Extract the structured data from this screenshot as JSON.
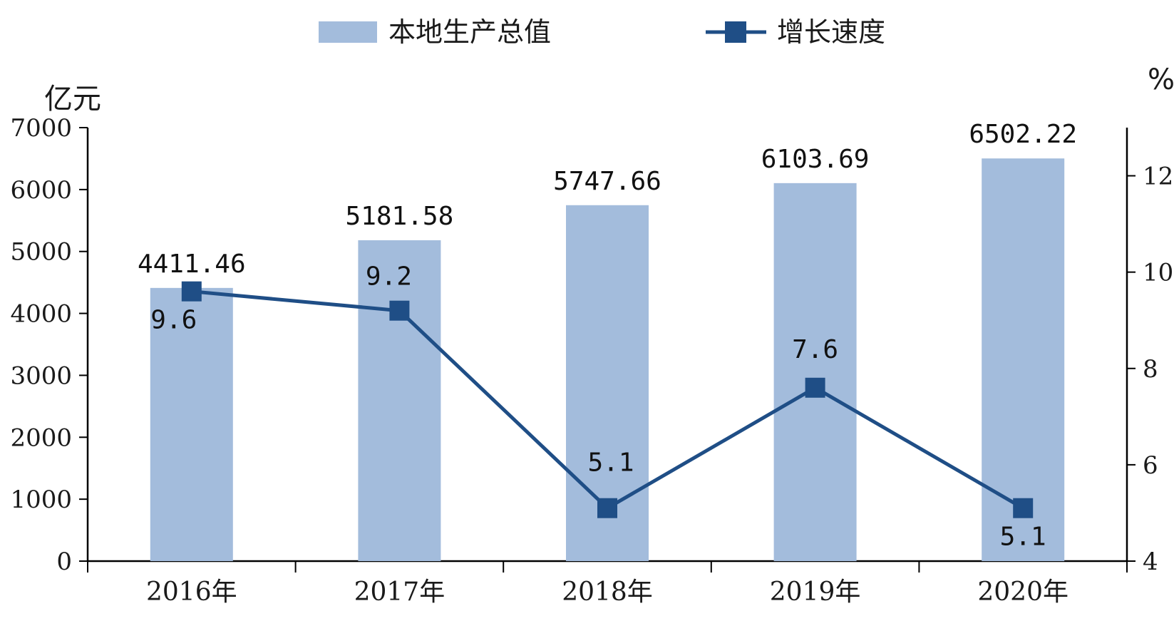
{
  "colors": {
    "bar": "#a3bcdc",
    "line": "#1f4e86",
    "axis": "#000000"
  },
  "chart_data": {
    "type": "bar",
    "categories": [
      "2016年",
      "2017年",
      "2018年",
      "2019年",
      "2020年"
    ],
    "series": [
      {
        "name": "本地生产总值",
        "type": "bar",
        "axis": "left",
        "values": [
          4411.46,
          5181.58,
          5747.66,
          6103.69,
          6502.22
        ],
        "labels": [
          "4411.46",
          "5181.58",
          "5747.66",
          "6103.69",
          "6502.22"
        ]
      },
      {
        "name": "增长速度",
        "type": "line",
        "axis": "right",
        "values": [
          9.6,
          9.2,
          5.1,
          7.6,
          5.1
        ],
        "labels": [
          "9.6",
          "9.2",
          "5.1",
          "7.6",
          "5.1"
        ]
      }
    ],
    "y_left": {
      "unit": "亿元",
      "ylim": [
        0,
        7000
      ],
      "ticks": [
        "0",
        "1000",
        "2000",
        "3000",
        "4000",
        "5000",
        "6000",
        "7000"
      ]
    },
    "y_right": {
      "unit": "%",
      "ylim": [
        4,
        13
      ],
      "ticks": [
        "4",
        "6",
        "8",
        "10",
        "12"
      ]
    },
    "legend": {
      "placement": "top-center"
    },
    "grid": false
  }
}
